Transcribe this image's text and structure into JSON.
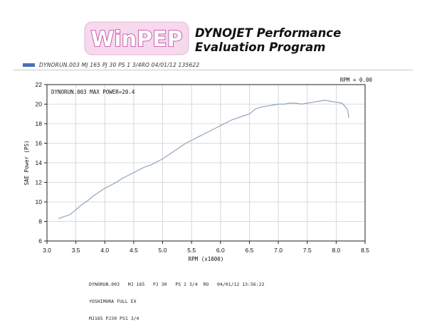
{
  "logo": {
    "text": "WinPEP"
  },
  "heading": {
    "line1": "DYNOJET Performance",
    "line2": "Evaluation Program"
  },
  "legend": {
    "label": "DYNORUN.003  MJ 165  PJ 30  PS 1 3/4RO  04/01/12 135622"
  },
  "rpm_readout": "RPM = 0.00",
  "notes": {
    "line1": "DYNORUN.003   MJ 165   PJ 30   PS 1 3/4  RO   04/01/12 13:56:22",
    "line2": "YOSHIMURA FULL EX",
    "line3": "MJ165 PJ30 PS1 3/4"
  },
  "colors": {
    "curve": "#8fa4bc",
    "legend_swatch": "#4a6fb8",
    "grid": "#cfcfcf"
  },
  "chart_data": {
    "type": "line",
    "title": "DYNORUN.003  MAX POWER=20.4",
    "xlabel": "RPM (x1000)",
    "ylabel": "SAE Power (PS)",
    "xlim": [
      3.0,
      8.5
    ],
    "ylim": [
      6,
      22
    ],
    "xticks": [
      "3.0",
      "3.5",
      "4.0",
      "4.5",
      "5.0",
      "5.5",
      "6.0",
      "6.5",
      "7.0",
      "7.5",
      "8.0",
      "8.5"
    ],
    "yticks": [
      "6",
      "8",
      "10",
      "12",
      "14",
      "16",
      "18",
      "20",
      "22"
    ],
    "grid": true,
    "series": [
      {
        "x": [
          3.2,
          3.3,
          3.4,
          3.5,
          3.6,
          3.7,
          3.8,
          3.9,
          4.0,
          4.1,
          4.2,
          4.3,
          4.4,
          4.5,
          4.6,
          4.7,
          4.8,
          4.9,
          5.0,
          5.1,
          5.2,
          5.3,
          5.4,
          5.5,
          5.6,
          5.7,
          5.8,
          5.9,
          6.0,
          6.1,
          6.2,
          6.3,
          6.4,
          6.5,
          6.6,
          6.7,
          6.8,
          6.9,
          7.0,
          7.1,
          7.2,
          7.3,
          7.4,
          7.5,
          7.6,
          7.7,
          7.8,
          7.9,
          8.0,
          8.1,
          8.15,
          8.2,
          8.22
        ],
        "y": [
          8.3,
          8.5,
          8.7,
          9.2,
          9.7,
          10.1,
          10.6,
          11.0,
          11.4,
          11.7,
          12.0,
          12.4,
          12.7,
          13.0,
          13.3,
          13.6,
          13.8,
          14.1,
          14.4,
          14.8,
          15.2,
          15.6,
          16.0,
          16.3,
          16.6,
          16.9,
          17.2,
          17.5,
          17.8,
          18.1,
          18.4,
          18.6,
          18.8,
          19.0,
          19.5,
          19.7,
          19.8,
          19.9,
          20.0,
          20.0,
          20.1,
          20.1,
          20.0,
          20.1,
          20.2,
          20.3,
          20.4,
          20.3,
          20.2,
          20.1,
          19.8,
          19.4,
          18.6
        ]
      }
    ]
  }
}
